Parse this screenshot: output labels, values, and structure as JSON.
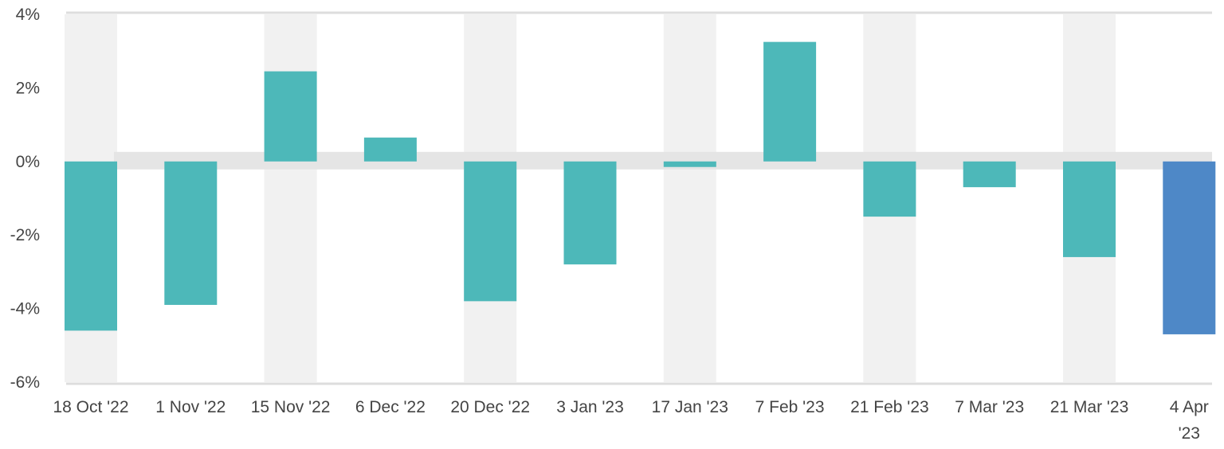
{
  "chart_data": {
    "type": "bar",
    "categories": [
      "18 Oct '22",
      "1 Nov '22",
      "15 Nov '22",
      "6 Dec '22",
      "20 Dec '22",
      "3 Jan '23",
      "17 Jan '23",
      "7 Feb '23",
      "21 Feb '23",
      "7 Mar '23",
      "21 Mar '23",
      "4 Apr '23"
    ],
    "category_label_lines": [
      [
        "18 Oct '22"
      ],
      [
        "1 Nov '22"
      ],
      [
        "15 Nov '22"
      ],
      [
        "6 Dec '22"
      ],
      [
        "20 Dec '22"
      ],
      [
        "3 Jan '23"
      ],
      [
        "17 Jan '23"
      ],
      [
        "7 Feb '23"
      ],
      [
        "21 Feb '23"
      ],
      [
        "7 Mar '23"
      ],
      [
        "21 Mar '23"
      ],
      [
        "4 Apr",
        "'23"
      ]
    ],
    "values": [
      -4.6,
      -3.9,
      2.45,
      0.65,
      -3.8,
      -2.8,
      -0.15,
      3.25,
      -1.5,
      -0.7,
      -2.6,
      -4.7
    ],
    "highlight_index": 11,
    "ylim": [
      -6,
      4
    ],
    "yticks": [
      4,
      2,
      0,
      -2,
      -4,
      -6
    ],
    "ytick_labels": [
      "4%",
      "2%",
      "0%",
      "-2%",
      "-4%",
      "-6%"
    ],
    "grid": true,
    "colors": {
      "bar": "#4db8b9",
      "highlight": "#4e88c7",
      "band": "#f1f1f1",
      "zero_band": "#e5e5e5",
      "axis_line": "#dddddd",
      "text": "#444444"
    }
  }
}
